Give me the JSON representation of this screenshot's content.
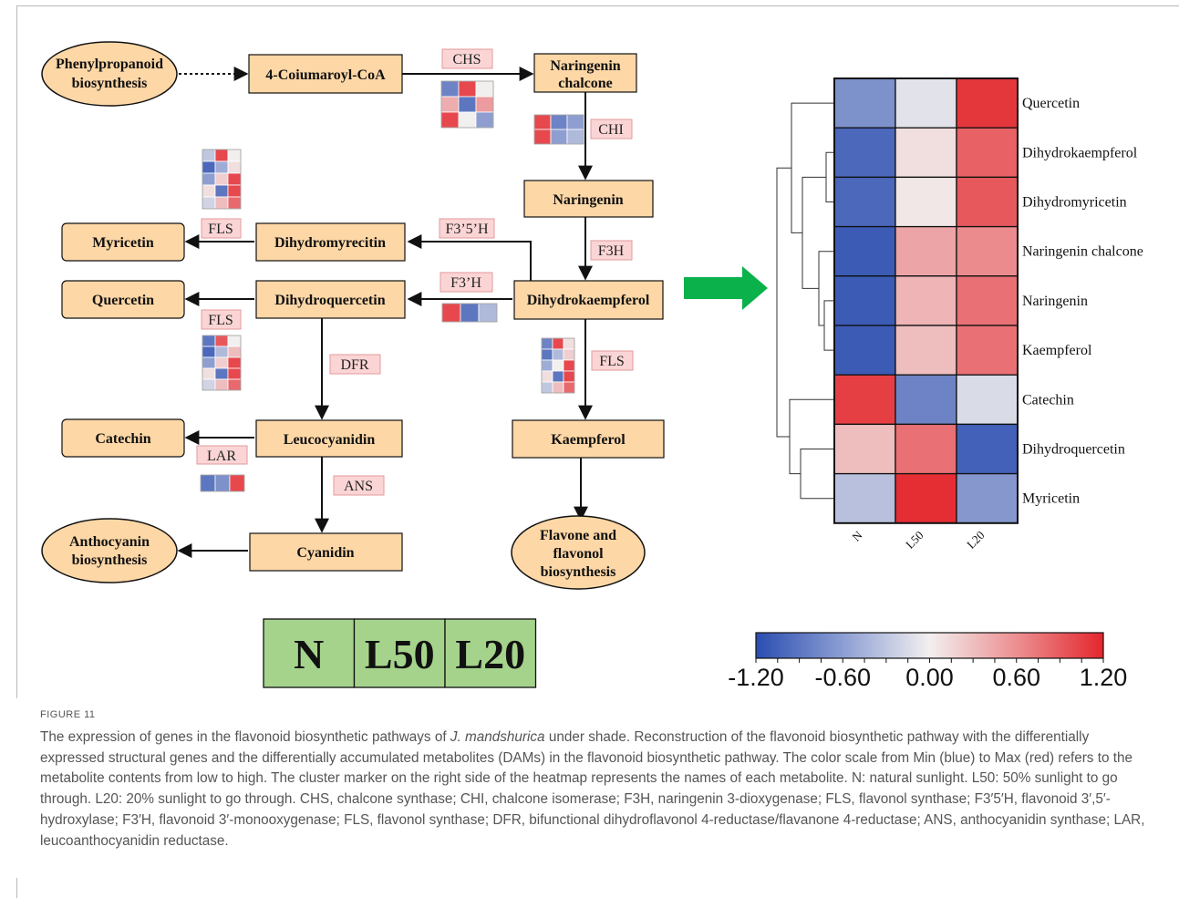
{
  "colors": {
    "node_fill": "#fdd7a6",
    "enzyme_fill": "#fbd5d5",
    "enzyme_border": "#e39a9a",
    "arrow_green": "#0bb14b",
    "legend_green": "#a5d38c",
    "low": "#2a4db0",
    "mid": "#f2efef",
    "high": "#e3262c"
  },
  "pathway": {
    "nodes": {
      "phenylpropanoid_1": "Phenylpropanoid",
      "phenylpropanoid_2": "biosynthesis",
      "coumaroyl": "4-Coiumaroyl-CoA",
      "naringenin_chalcone_1": "Naringenin",
      "naringenin_chalcone_2": "chalcone",
      "naringenin": "Naringenin",
      "dihydrokaempferol": "Dihydrokaempferol",
      "dihydromyricetin": "Dihydromyrecitin",
      "dihydroquercetin": "Dihydroquercetin",
      "myricetin": "Myricetin",
      "quercetin": "Quercetin",
      "catechin": "Catechin",
      "leucocyanidin": "Leucocyanidin",
      "kaempferol": "Kaempferol",
      "cyanidin": "Cyanidin",
      "anthocyanin_1": "Anthocyanin",
      "anthocyanin_2": "biosynthesis",
      "flavone_1": "Flavone and",
      "flavone_2": "flavonol",
      "flavone_3": "biosynthesis"
    },
    "enzymes": {
      "chs": "CHS",
      "chi": "CHI",
      "f3h": "F3H",
      "f35h": "F3’5’H",
      "f3ph": "F3’H",
      "fls_top": "FLS",
      "fls_mid": "FLS",
      "fls_right": "FLS",
      "dfr": "DFR",
      "lar": "LAR",
      "ans": "ANS"
    },
    "gene_heatmaps": {
      "chs": [
        [
          -0.8,
          1.0,
          0.0
        ],
        [
          0.4,
          -0.9,
          0.5
        ],
        [
          1.0,
          0.0,
          -0.6
        ]
      ],
      "chi": [
        [
          1.0,
          -0.8,
          -0.6
        ],
        [
          1.0,
          -0.6,
          -0.4
        ]
      ],
      "fls_top": [
        [
          -0.3,
          1.0,
          0.0
        ],
        [
          -1.0,
          -0.5,
          0.1
        ],
        [
          -0.6,
          0.2,
          1.0
        ],
        [
          0.1,
          -0.9,
          1.0
        ],
        [
          -0.2,
          0.3,
          0.8
        ]
      ],
      "fls_mid": [
        [
          -0.9,
          0.9,
          0.0
        ],
        [
          -1.0,
          -0.4,
          0.3
        ],
        [
          -0.6,
          0.2,
          1.0
        ],
        [
          0.1,
          -0.9,
          1.0
        ],
        [
          -0.2,
          0.3,
          0.8
        ]
      ],
      "fls_right": [
        [
          -0.8,
          1.0,
          0.1
        ],
        [
          -0.9,
          -0.4,
          0.2
        ],
        [
          -0.5,
          0.0,
          1.0
        ],
        [
          0.1,
          -0.9,
          1.0
        ],
        [
          -0.3,
          0.3,
          0.8
        ]
      ],
      "f3ph": [
        [
          1.0,
          -0.9,
          -0.4
        ]
      ],
      "lar": [
        [
          -0.9,
          -0.7,
          1.0
        ]
      ]
    }
  },
  "heatmap": {
    "rows": [
      "Quercetin",
      "Dihydrokaempferol",
      "Dihydromyricetin",
      "Naringenin chalcone",
      "Naringenin",
      "Kaempferol",
      "Catechin",
      "Dihydroquercetin",
      "Myricetin"
    ],
    "columns": [
      "N",
      "L50",
      "L20"
    ],
    "values": [
      [
        -0.7,
        -0.1,
        1.1
      ],
      [
        -1.0,
        0.1,
        0.85
      ],
      [
        -1.0,
        0.05,
        0.9
      ],
      [
        -1.1,
        0.45,
        0.6
      ],
      [
        -1.1,
        0.35,
        0.75
      ],
      [
        -1.1,
        0.3,
        0.75
      ],
      [
        1.05,
        -0.8,
        -0.15
      ],
      [
        0.3,
        0.75,
        -1.05
      ],
      [
        -0.35,
        1.15,
        -0.65
      ]
    ]
  },
  "colorbar": {
    "min": -1.2,
    "max": 1.2,
    "tick_labels": [
      "-1.20",
      "-0.60",
      "0.00",
      "0.60",
      "1.20"
    ]
  },
  "legend_boxes": [
    "N",
    "L50",
    "L20"
  ],
  "caption": {
    "label": "FIGURE 11",
    "before_species": "The expression of genes in the flavonoid biosynthetic pathways of ",
    "species": "J. mandshurica",
    "after_species": " under shade. Reconstruction of the flavonoid biosynthetic pathway with the differentially expressed structural genes and the differentially accumulated metabolites (DAMs) in the flavonoid biosynthetic pathway. The color scale from Min (blue) to Max (red) refers to the metabolite contents from low to high. The cluster marker on the right side of the heatmap represents the names of each metabolite. N: natural sunlight. L50: 50% sunlight to go through. L20: 20% sunlight to go through. CHS, chalcone synthase; CHI, chalcone isomerase; F3H, naringenin 3-dioxygenase; FLS, flavonol synthase; F3′5′H, flavonoid 3′,5′-hydroxylase; F3′H, flavonoid 3′-monooxygenase; FLS, flavonol synthase; DFR, bifunctional dihydroflavonol 4-reductase/flavanone 4-reductase; ANS, anthocyanidin synthase; LAR, leucoanthocyanidin reductase."
  }
}
